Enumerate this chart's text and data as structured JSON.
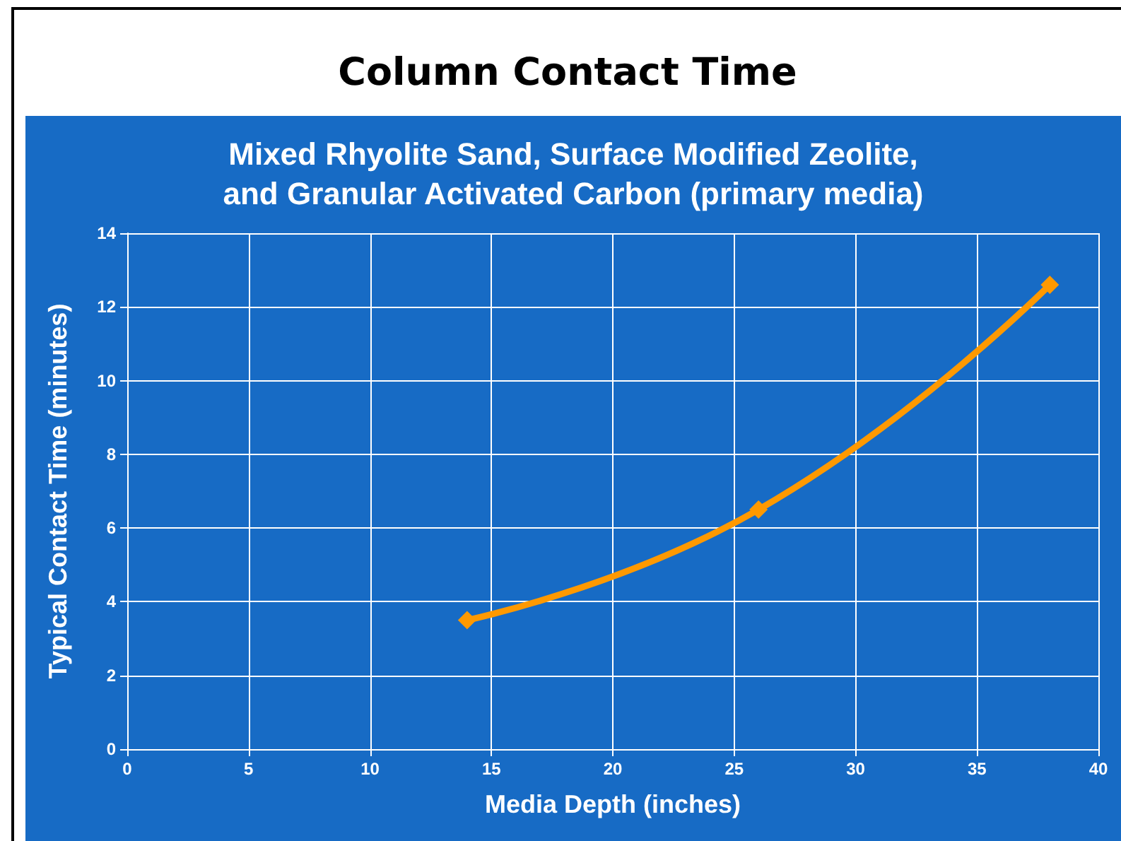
{
  "chart_data": {
    "type": "line",
    "title": "Column Contact Time",
    "subtitle": "Mixed Rhyolite Sand, Surface Modified Zeolite,\nand Granular Activated Carbon (primary media)",
    "xlabel": "Media Depth (inches)",
    "ylabel": "Typical Contact Time (minutes)",
    "x": [
      14,
      26,
      38
    ],
    "series": [
      {
        "color": "#ff9900",
        "values": [
          3.5,
          6.5,
          12.6
        ]
      }
    ],
    "xlim": [
      0,
      40
    ],
    "xticks": [
      0,
      5,
      10,
      15,
      20,
      25,
      30,
      35,
      40
    ],
    "ylim": [
      0,
      14
    ],
    "yticks": [
      0,
      2,
      4,
      6,
      8,
      10,
      12,
      14
    ],
    "grid": true,
    "marker": "diamond",
    "line_style": "solid"
  }
}
